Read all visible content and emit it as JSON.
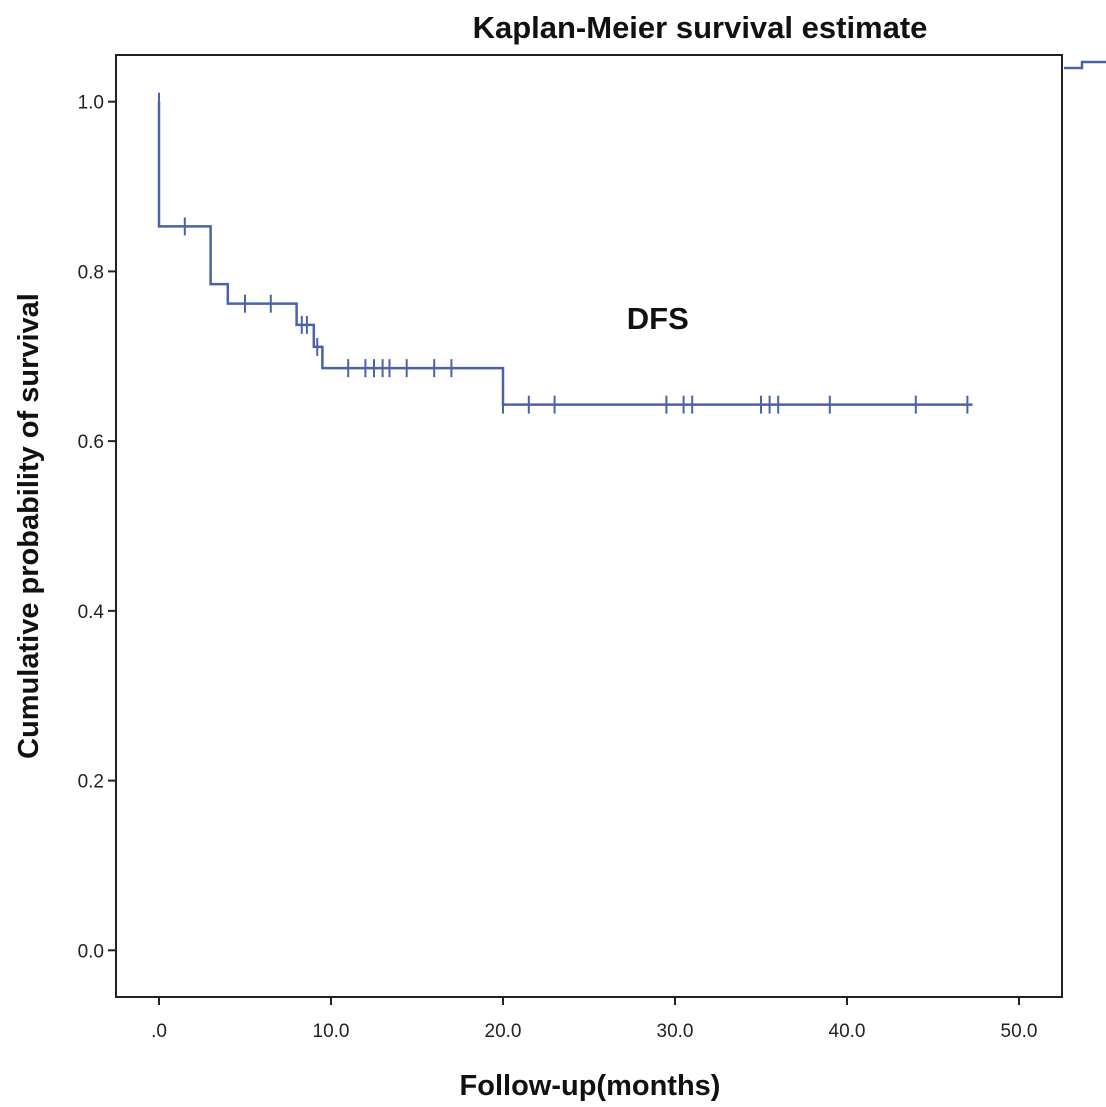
{
  "chart_data": {
    "type": "line",
    "subtype": "kaplan-meier step curve",
    "title": "Kaplan-Meier survival estimate",
    "xlabel": "Follow-up(months)",
    "ylabel": "Cumulative probability of survival",
    "xlim": [
      -2.5,
      52.5
    ],
    "ylim": [
      -0.055,
      1.055
    ],
    "xticks": [
      0,
      10,
      20,
      30,
      40,
      50
    ],
    "xtick_labels": [
      ".0",
      "10.0",
      "20.0",
      "30.0",
      "40.0",
      "50.0"
    ],
    "yticks": [
      0.0,
      0.2,
      0.4,
      0.6,
      0.8,
      1.0
    ],
    "ytick_labels": [
      "0.0",
      "0.2",
      "0.4",
      "0.6",
      "0.8",
      "1.0"
    ],
    "grid": false,
    "line_color": "#4a63a8",
    "annotation": {
      "text": "DFS",
      "x": 29,
      "y": 0.745
    },
    "series": [
      {
        "steps": [
          {
            "x": 0.0,
            "y": 1.0
          },
          {
            "x": 0.0,
            "y": 0.853
          },
          {
            "x": 3.0,
            "y": 0.785
          },
          {
            "x": 4.0,
            "y": 0.762
          },
          {
            "x": 8.0,
            "y": 0.737
          },
          {
            "x": 9.0,
            "y": 0.711
          },
          {
            "x": 9.5,
            "y": 0.686
          },
          {
            "x": 20.0,
            "y": 0.643
          }
        ],
        "end_x": 47.3,
        "censored": [
          {
            "x": 0.0,
            "y": 1.0
          },
          {
            "x": 1.5,
            "y": 0.853
          },
          {
            "x": 5.0,
            "y": 0.762
          },
          {
            "x": 6.5,
            "y": 0.762
          },
          {
            "x": 8.3,
            "y": 0.737
          },
          {
            "x": 8.6,
            "y": 0.737
          },
          {
            "x": 9.2,
            "y": 0.711
          },
          {
            "x": 11.0,
            "y": 0.686
          },
          {
            "x": 12.0,
            "y": 0.686
          },
          {
            "x": 12.5,
            "y": 0.686
          },
          {
            "x": 13.0,
            "y": 0.686
          },
          {
            "x": 13.4,
            "y": 0.686
          },
          {
            "x": 14.4,
            "y": 0.686
          },
          {
            "x": 16.0,
            "y": 0.686
          },
          {
            "x": 17.0,
            "y": 0.686
          },
          {
            "x": 20.0,
            "y": 0.643
          },
          {
            "x": 21.5,
            "y": 0.643
          },
          {
            "x": 23.0,
            "y": 0.643
          },
          {
            "x": 29.5,
            "y": 0.643
          },
          {
            "x": 30.5,
            "y": 0.643
          },
          {
            "x": 31.0,
            "y": 0.643
          },
          {
            "x": 35.0,
            "y": 0.643
          },
          {
            "x": 35.5,
            "y": 0.643
          },
          {
            "x": 36.0,
            "y": 0.643
          },
          {
            "x": 39.0,
            "y": 0.643
          },
          {
            "x": 44.0,
            "y": 0.643
          },
          {
            "x": 47.0,
            "y": 0.643
          }
        ]
      }
    ]
  }
}
